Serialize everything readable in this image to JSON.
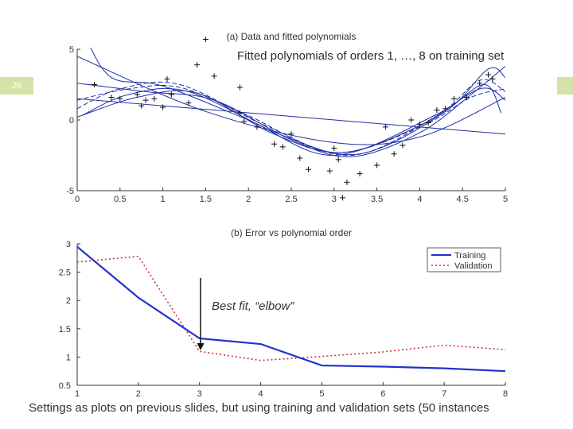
{
  "slide": {
    "number": "26",
    "annotation_top": "Fitted polynomials of orders 1, …, 8 on training set",
    "annotation_elbow": "Best fit, “elbow”",
    "footer": "Settings as plots on previous slides, but using training and validation sets (50 instances"
  },
  "colors": {
    "header_bar": "#d3e3a7",
    "fit_line": "#1f2fa8",
    "training": "#2233cc",
    "validation": "#cc3333"
  },
  "chart_data": [
    {
      "type": "line",
      "title": "(a) Data and fitted polynomials",
      "xlim": [
        0,
        5
      ],
      "ylim": [
        -5,
        5
      ],
      "xticks": [
        0,
        0.5,
        1,
        1.5,
        2,
        2.5,
        3,
        3.5,
        4,
        4.5,
        5
      ],
      "xtick_labels": [
        "0",
        "0.5",
        "1",
        "1.5",
        "2",
        "2.5",
        "3",
        "3.5",
        "4",
        "4.5",
        "5"
      ],
      "yticks": [
        -5,
        0,
        5
      ],
      "ytick_labels": [
        "-5",
        "0",
        "5"
      ],
      "points": [
        [
          1.5,
          5.7
        ],
        [
          1.4,
          3.9
        ],
        [
          1.6,
          3.1
        ],
        [
          1.9,
          2.3
        ],
        [
          0.7,
          1.8
        ],
        [
          0.8,
          1.4
        ],
        [
          1.05,
          2.9
        ],
        [
          0.9,
          1.5
        ],
        [
          1.1,
          1.8
        ],
        [
          0.5,
          1.5
        ],
        [
          0.75,
          1.0
        ],
        [
          1.3,
          1.2
        ],
        [
          1.0,
          0.9
        ],
        [
          0.4,
          1.6
        ],
        [
          0.2,
          2.5
        ],
        [
          1.9,
          0.5
        ],
        [
          1.95,
          -0.1
        ],
        [
          2.1,
          -0.5
        ],
        [
          2.3,
          -1.7
        ],
        [
          2.5,
          -1.0
        ],
        [
          2.4,
          -1.9
        ],
        [
          2.6,
          -2.7
        ],
        [
          2.7,
          -3.5
        ],
        [
          2.95,
          -3.6
        ],
        [
          3.0,
          -2.0
        ],
        [
          3.05,
          -2.8
        ],
        [
          3.1,
          -5.5
        ],
        [
          3.15,
          -4.4
        ],
        [
          3.3,
          -3.8
        ],
        [
          3.5,
          -3.2
        ],
        [
          3.6,
          -0.5
        ],
        [
          3.7,
          -2.4
        ],
        [
          3.8,
          -1.8
        ],
        [
          3.9,
          0.0
        ],
        [
          4.0,
          -0.3
        ],
        [
          4.1,
          -0.2
        ],
        [
          4.2,
          0.7
        ],
        [
          4.3,
          0.8
        ],
        [
          4.4,
          1.5
        ],
        [
          4.55,
          1.6
        ],
        [
          4.7,
          2.6
        ],
        [
          4.8,
          3.2
        ],
        [
          4.85,
          2.9
        ]
      ],
      "series": [
        {
          "values": [
            [
              0,
              1.5
            ],
            [
              5,
              -1.0
            ]
          ]
        },
        {
          "values": [
            [
              0,
              4.5
            ],
            [
              1.5,
              0.6
            ],
            [
              3,
              -1.6
            ],
            [
              4,
              -1.2
            ],
            [
              5,
              1.6
            ]
          ]
        },
        {
          "values": [
            [
              0,
              1.4
            ],
            [
              0.6,
              2.2
            ],
            [
              1.2,
              2.3
            ],
            [
              2.0,
              0.3
            ],
            [
              3.0,
              -2.3
            ],
            [
              4.0,
              -0.5
            ],
            [
              4.6,
              1.6
            ],
            [
              5,
              2.2
            ]
          ]
        },
        {
          "values": [
            [
              0,
              2.6
            ],
            [
              0.8,
              2.0
            ],
            [
              1.6,
              1.4
            ],
            [
              2.5,
              -1.4
            ],
            [
              3.2,
              -2.6
            ],
            [
              4.0,
              -0.9
            ],
            [
              4.6,
              1.8
            ],
            [
              5,
              3.8
            ]
          ]
        },
        {
          "values": [
            [
              0,
              0.2
            ],
            [
              0.7,
              1.6
            ],
            [
              1.4,
              1.9
            ],
            [
              2.3,
              -1.0
            ],
            [
              3.1,
              -2.3
            ],
            [
              4.0,
              -0.4
            ],
            [
              4.7,
              2.2
            ],
            [
              5,
              1.4
            ]
          ]
        },
        {
          "values": [
            [
              0,
              0.8
            ],
            [
              0.5,
              2.2
            ],
            [
              1.2,
              2.5
            ],
            [
              2.2,
              -0.4
            ],
            [
              3.2,
              -2.5
            ],
            [
              4.2,
              0.3
            ],
            [
              4.7,
              2.8
            ],
            [
              5,
              2.0
            ]
          ]
        },
        {
          "values": [
            [
              0.1,
              5.8
            ],
            [
              0.4,
              3.0
            ],
            [
              1.0,
              2.4
            ],
            [
              2.0,
              0.0
            ],
            [
              3.0,
              -2.5
            ],
            [
              4.2,
              0.4
            ],
            [
              4.75,
              2.5
            ],
            [
              4.95,
              0.5
            ]
          ]
        },
        {
          "values": [
            [
              0.05,
              0.3
            ],
            [
              0.6,
              1.8
            ],
            [
              1.3,
              2.0
            ],
            [
              2.4,
              -1.1
            ],
            [
              3.3,
              -2.4
            ],
            [
              4.3,
              0.6
            ],
            [
              4.8,
              3.6
            ],
            [
              5,
              3.0
            ]
          ]
        }
      ]
    },
    {
      "type": "line",
      "title": "(b) Error vs polynomial order",
      "xlim": [
        1,
        8
      ],
      "ylim": [
        0.5,
        3
      ],
      "xticks": [
        1,
        2,
        3,
        4,
        5,
        6,
        7,
        8
      ],
      "xtick_labels": [
        "1",
        "2",
        "3",
        "4",
        "5",
        "6",
        "7",
        "8"
      ],
      "yticks": [
        0.5,
        1,
        1.5,
        2,
        2.5,
        3
      ],
      "ytick_labels": [
        "0.5",
        "1",
        "1.5",
        "2",
        "2.5",
        "3"
      ],
      "legend_position": "top-right",
      "x": [
        1,
        2,
        3,
        4,
        5,
        6,
        7,
        8
      ],
      "series": [
        {
          "name": "Training",
          "values": [
            2.95,
            2.05,
            1.33,
            1.23,
            0.85,
            0.83,
            0.8,
            0.75
          ]
        },
        {
          "name": "Validation",
          "values": [
            2.68,
            2.78,
            1.1,
            0.94,
            1.01,
            1.09,
            1.21,
            1.13
          ]
        }
      ]
    }
  ]
}
